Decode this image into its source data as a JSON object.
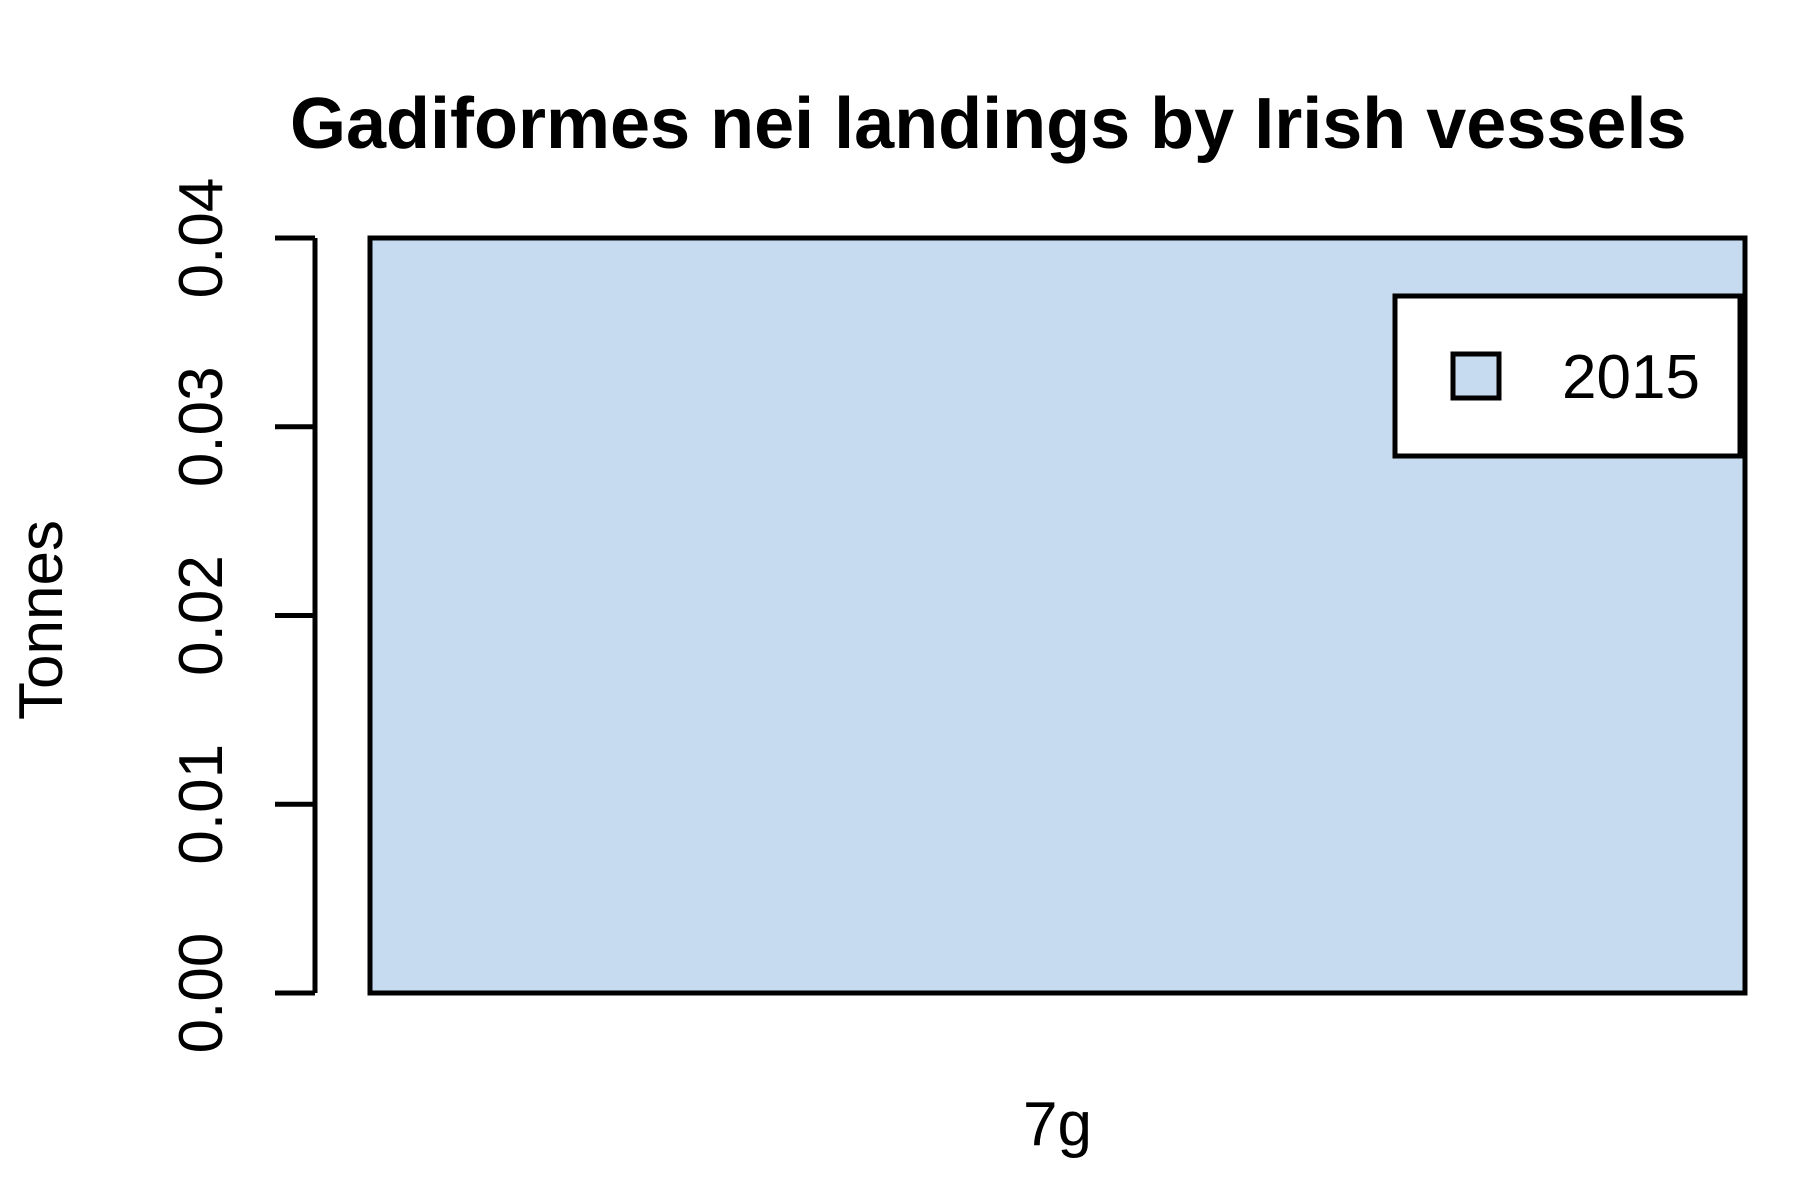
{
  "chart_data": {
    "type": "bar",
    "title": "Gadiformes nei landings by Irish vessels",
    "xlabel": "",
    "ylabel": "Tonnes",
    "categories": [
      "7g"
    ],
    "series": [
      {
        "name": "2015",
        "values": [
          0.04
        ],
        "color": "#c6dbef"
      }
    ],
    "ylim": [
      0,
      0.04
    ],
    "yticks": [
      "0.00",
      "0.01",
      "0.02",
      "0.03",
      "0.04"
    ],
    "legend_position": "top-right",
    "grid": false
  }
}
